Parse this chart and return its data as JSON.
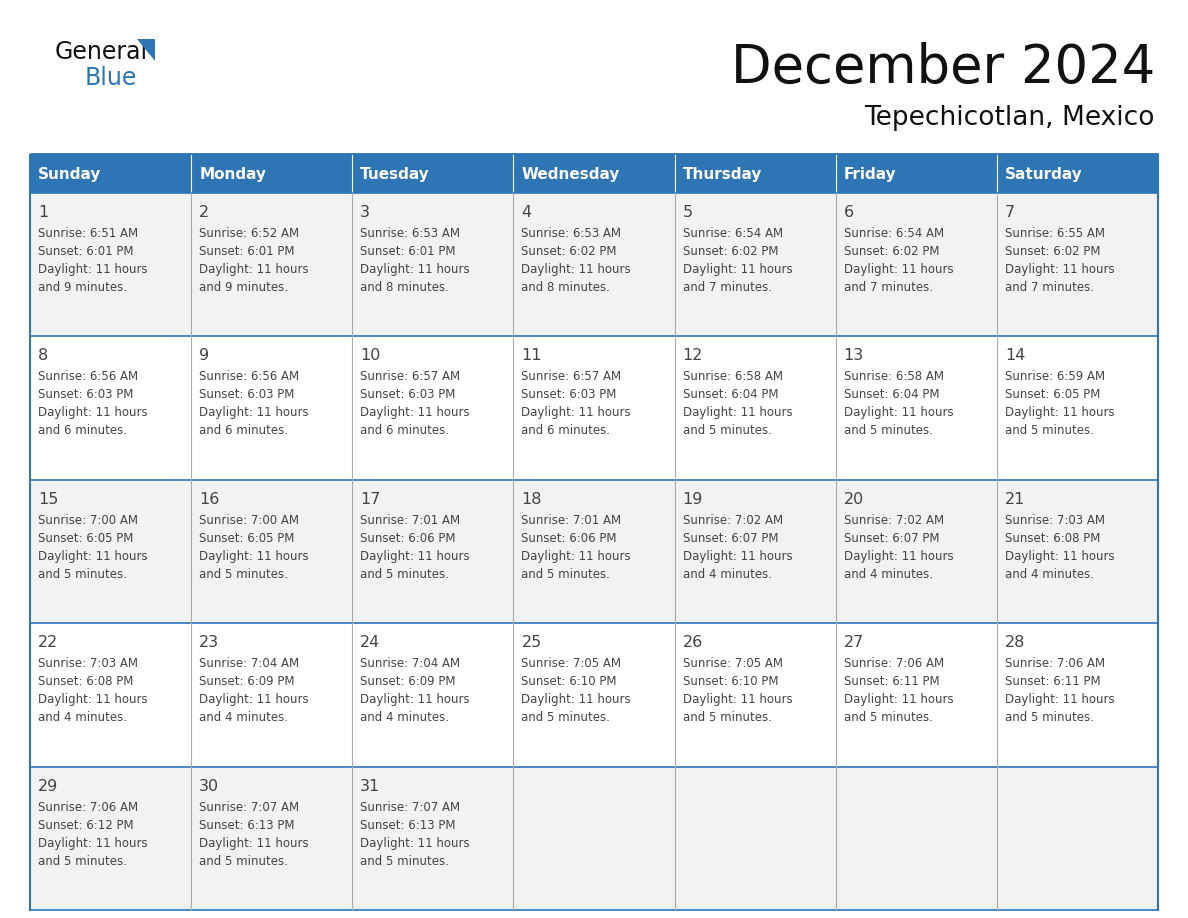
{
  "title": "December 2024",
  "subtitle": "Tepechicotlan, Mexico",
  "days_of_week": [
    "Sunday",
    "Monday",
    "Tuesday",
    "Wednesday",
    "Thursday",
    "Friday",
    "Saturday"
  ],
  "header_bg": "#2E75B6",
  "header_text": "#FFFFFF",
  "cell_bg_odd": "#F2F2F2",
  "cell_bg_even": "#FFFFFF",
  "border_color": "#2E75B6",
  "grid_color": "#AAAAAA",
  "text_color": "#444444",
  "title_color": "#111111",
  "logo_text_color": "#111111",
  "logo_blue_color": "#2E75B6",
  "calendar_data": [
    [
      {
        "day": 1,
        "sunrise": "6:51 AM",
        "sunset": "6:01 PM",
        "daylight": "11 hours and 9 minutes."
      },
      {
        "day": 2,
        "sunrise": "6:52 AM",
        "sunset": "6:01 PM",
        "daylight": "11 hours and 9 minutes."
      },
      {
        "day": 3,
        "sunrise": "6:53 AM",
        "sunset": "6:01 PM",
        "daylight": "11 hours and 8 minutes."
      },
      {
        "day": 4,
        "sunrise": "6:53 AM",
        "sunset": "6:02 PM",
        "daylight": "11 hours and 8 minutes."
      },
      {
        "day": 5,
        "sunrise": "6:54 AM",
        "sunset": "6:02 PM",
        "daylight": "11 hours and 7 minutes."
      },
      {
        "day": 6,
        "sunrise": "6:54 AM",
        "sunset": "6:02 PM",
        "daylight": "11 hours and 7 minutes."
      },
      {
        "day": 7,
        "sunrise": "6:55 AM",
        "sunset": "6:02 PM",
        "daylight": "11 hours and 7 minutes."
      }
    ],
    [
      {
        "day": 8,
        "sunrise": "6:56 AM",
        "sunset": "6:03 PM",
        "daylight": "11 hours and 6 minutes."
      },
      {
        "day": 9,
        "sunrise": "6:56 AM",
        "sunset": "6:03 PM",
        "daylight": "11 hours and 6 minutes."
      },
      {
        "day": 10,
        "sunrise": "6:57 AM",
        "sunset": "6:03 PM",
        "daylight": "11 hours and 6 minutes."
      },
      {
        "day": 11,
        "sunrise": "6:57 AM",
        "sunset": "6:03 PM",
        "daylight": "11 hours and 6 minutes."
      },
      {
        "day": 12,
        "sunrise": "6:58 AM",
        "sunset": "6:04 PM",
        "daylight": "11 hours and 5 minutes."
      },
      {
        "day": 13,
        "sunrise": "6:58 AM",
        "sunset": "6:04 PM",
        "daylight": "11 hours and 5 minutes."
      },
      {
        "day": 14,
        "sunrise": "6:59 AM",
        "sunset": "6:05 PM",
        "daylight": "11 hours and 5 minutes."
      }
    ],
    [
      {
        "day": 15,
        "sunrise": "7:00 AM",
        "sunset": "6:05 PM",
        "daylight": "11 hours and 5 minutes."
      },
      {
        "day": 16,
        "sunrise": "7:00 AM",
        "sunset": "6:05 PM",
        "daylight": "11 hours and 5 minutes."
      },
      {
        "day": 17,
        "sunrise": "7:01 AM",
        "sunset": "6:06 PM",
        "daylight": "11 hours and 5 minutes."
      },
      {
        "day": 18,
        "sunrise": "7:01 AM",
        "sunset": "6:06 PM",
        "daylight": "11 hours and 5 minutes."
      },
      {
        "day": 19,
        "sunrise": "7:02 AM",
        "sunset": "6:07 PM",
        "daylight": "11 hours and 4 minutes."
      },
      {
        "day": 20,
        "sunrise": "7:02 AM",
        "sunset": "6:07 PM",
        "daylight": "11 hours and 4 minutes."
      },
      {
        "day": 21,
        "sunrise": "7:03 AM",
        "sunset": "6:08 PM",
        "daylight": "11 hours and 4 minutes."
      }
    ],
    [
      {
        "day": 22,
        "sunrise": "7:03 AM",
        "sunset": "6:08 PM",
        "daylight": "11 hours and 4 minutes."
      },
      {
        "day": 23,
        "sunrise": "7:04 AM",
        "sunset": "6:09 PM",
        "daylight": "11 hours and 4 minutes."
      },
      {
        "day": 24,
        "sunrise": "7:04 AM",
        "sunset": "6:09 PM",
        "daylight": "11 hours and 4 minutes."
      },
      {
        "day": 25,
        "sunrise": "7:05 AM",
        "sunset": "6:10 PM",
        "daylight": "11 hours and 5 minutes."
      },
      {
        "day": 26,
        "sunrise": "7:05 AM",
        "sunset": "6:10 PM",
        "daylight": "11 hours and 5 minutes."
      },
      {
        "day": 27,
        "sunrise": "7:06 AM",
        "sunset": "6:11 PM",
        "daylight": "11 hours and 5 minutes."
      },
      {
        "day": 28,
        "sunrise": "7:06 AM",
        "sunset": "6:11 PM",
        "daylight": "11 hours and 5 minutes."
      }
    ],
    [
      {
        "day": 29,
        "sunrise": "7:06 AM",
        "sunset": "6:12 PM",
        "daylight": "11 hours and 5 minutes."
      },
      {
        "day": 30,
        "sunrise": "7:07 AM",
        "sunset": "6:13 PM",
        "daylight": "11 hours and 5 minutes."
      },
      {
        "day": 31,
        "sunrise": "7:07 AM",
        "sunset": "6:13 PM",
        "daylight": "11 hours and 5 minutes."
      },
      null,
      null,
      null,
      null
    ]
  ]
}
